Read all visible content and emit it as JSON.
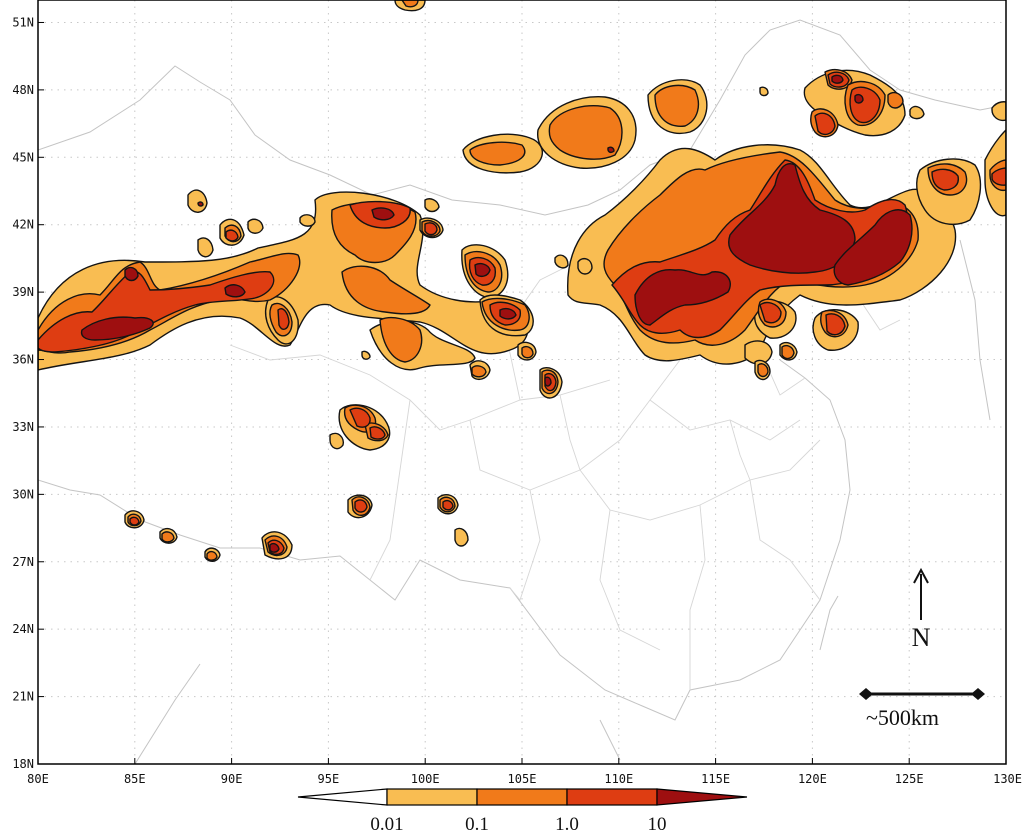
{
  "map": {
    "lon_range": [
      80,
      130
    ],
    "lat_range": [
      18,
      52
    ],
    "x_ticks": [
      "80E",
      "85E",
      "90E",
      "95E",
      "100E",
      "105E",
      "110E",
      "115E",
      "120E",
      "125E",
      "130E"
    ],
    "y_ticks": [
      "18N",
      "21N",
      "24N",
      "27N",
      "30N",
      "33N",
      "36N",
      "39N",
      "42N",
      "45N",
      "48N",
      "51N"
    ],
    "gridlines": "dotted",
    "north_arrow_label": "N",
    "scale_bar_label": "~500km"
  },
  "legend": {
    "labels": [
      "0.01",
      "0.1",
      "1.0",
      "10"
    ],
    "colors": [
      "#ffffff",
      "#f9bd52",
      "#f17a1a",
      "#de3d12",
      "#9e0f10"
    ]
  }
}
